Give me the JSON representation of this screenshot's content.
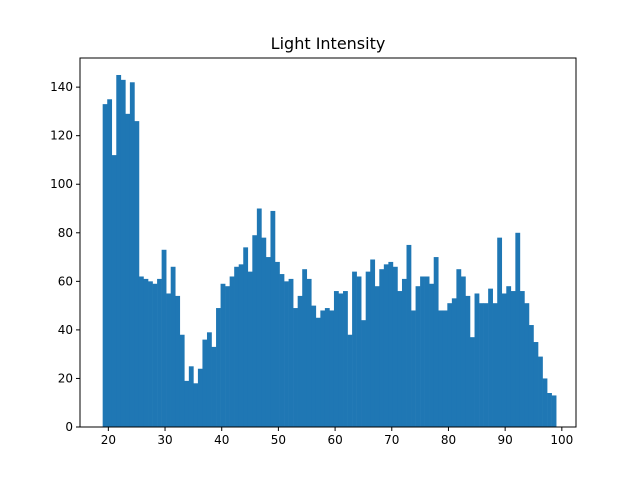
{
  "chart_data": {
    "type": "bar",
    "title": "Light Intensity",
    "xlabel": "",
    "ylabel": "",
    "xlim": [
      15.0,
      102.5
    ],
    "ylim": [
      0,
      152
    ],
    "xticks": [
      20,
      30,
      40,
      50,
      60,
      70,
      80,
      90,
      100
    ],
    "yticks": [
      0,
      20,
      40,
      60,
      80,
      100,
      120,
      140
    ],
    "bar_color": "#1f77b4",
    "bin_start": 19.0,
    "bin_width": 0.8,
    "values": [
      133,
      135,
      112,
      145,
      143,
      129,
      142,
      126,
      62,
      61,
      60,
      59,
      61,
      73,
      55,
      66,
      54,
      38,
      19,
      25,
      18,
      24,
      36,
      39,
      33,
      49,
      59,
      58,
      62,
      66,
      67,
      74,
      64,
      79,
      90,
      78,
      70,
      89,
      68,
      63,
      60,
      61,
      49,
      54,
      65,
      61,
      50,
      45,
      48,
      49,
      48,
      56,
      55,
      56,
      38,
      64,
      62,
      44,
      64,
      69,
      58,
      65,
      67,
      68,
      66,
      56,
      61,
      75,
      48,
      58,
      62,
      62,
      59,
      70,
      48,
      48,
      51,
      53,
      65,
      62,
      54,
      37,
      55,
      51,
      51,
      57,
      51,
      78,
      55,
      58,
      56,
      80,
      56,
      51,
      42,
      35,
      29,
      20,
      14,
      13
    ]
  }
}
